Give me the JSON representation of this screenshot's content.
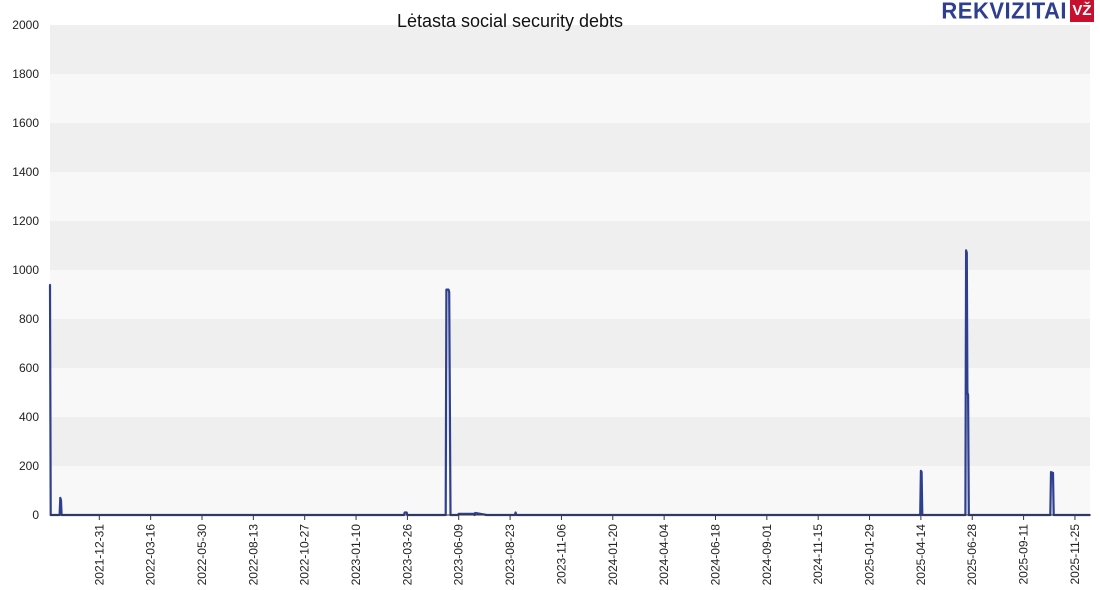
{
  "brand": {
    "logo_text": "REKVIZITAI",
    "logo_badge": "VŽ"
  },
  "chart_data": {
    "type": "line",
    "title": "Lėtasta social security debts",
    "xlabel": "",
    "ylabel": "",
    "ylim": [
      0,
      2000
    ],
    "yticks": [
      0,
      200,
      400,
      600,
      800,
      1000,
      1200,
      1400,
      1600,
      1800,
      2000
    ],
    "xlim": [
      "2021-10-20",
      "2025-12-17"
    ],
    "xticks": [
      "2021-12-31",
      "2022-03-16",
      "2022-05-30",
      "2022-08-13",
      "2022-10-27",
      "2023-01-10",
      "2023-03-26",
      "2023-06-09",
      "2023-08-23",
      "2023-11-06",
      "2024-01-20",
      "2024-04-04",
      "2024-06-18",
      "2024-09-01",
      "2024-11-15",
      "2025-01-29",
      "2025-04-14",
      "2025-06-28",
      "2025-09-11",
      "2025-11-25"
    ],
    "grid": true,
    "colors": {
      "line": "#2f3f8f",
      "band_dark": "#efefef",
      "band_light": "#f8f8f8"
    },
    "series": [
      {
        "x": [
          "2021-10-20",
          "2021-10-21",
          "2021-10-22",
          "2021-11-03",
          "2021-11-04",
          "2021-11-05",
          "2021-11-06",
          "2023-03-21",
          "2023-03-22",
          "2023-03-25",
          "2023-03-26",
          "2023-05-21",
          "2023-05-22",
          "2023-05-25",
          "2023-05-26",
          "2023-05-28",
          "2023-06-08",
          "2023-06-09",
          "2023-07-01",
          "2023-07-02",
          "2023-07-03",
          "2023-07-20",
          "2023-08-30",
          "2023-08-31",
          "2023-09-01",
          "2025-04-13",
          "2025-04-14",
          "2025-04-15",
          "2025-04-16",
          "2025-06-18",
          "2025-06-19",
          "2025-06-20",
          "2025-06-21",
          "2025-06-22",
          "2025-06-23",
          "2025-10-20",
          "2025-10-21",
          "2025-10-24",
          "2025-10-25",
          "2025-12-17"
        ],
        "y": [
          940,
          0,
          0,
          0,
          70,
          60,
          0,
          0,
          10,
          10,
          0,
          0,
          920,
          920,
          910,
          0,
          0,
          5,
          5,
          0,
          8,
          0,
          0,
          10,
          0,
          0,
          180,
          175,
          0,
          0,
          1080,
          1070,
          500,
          490,
          0,
          0,
          175,
          172,
          0,
          0
        ]
      }
    ]
  }
}
